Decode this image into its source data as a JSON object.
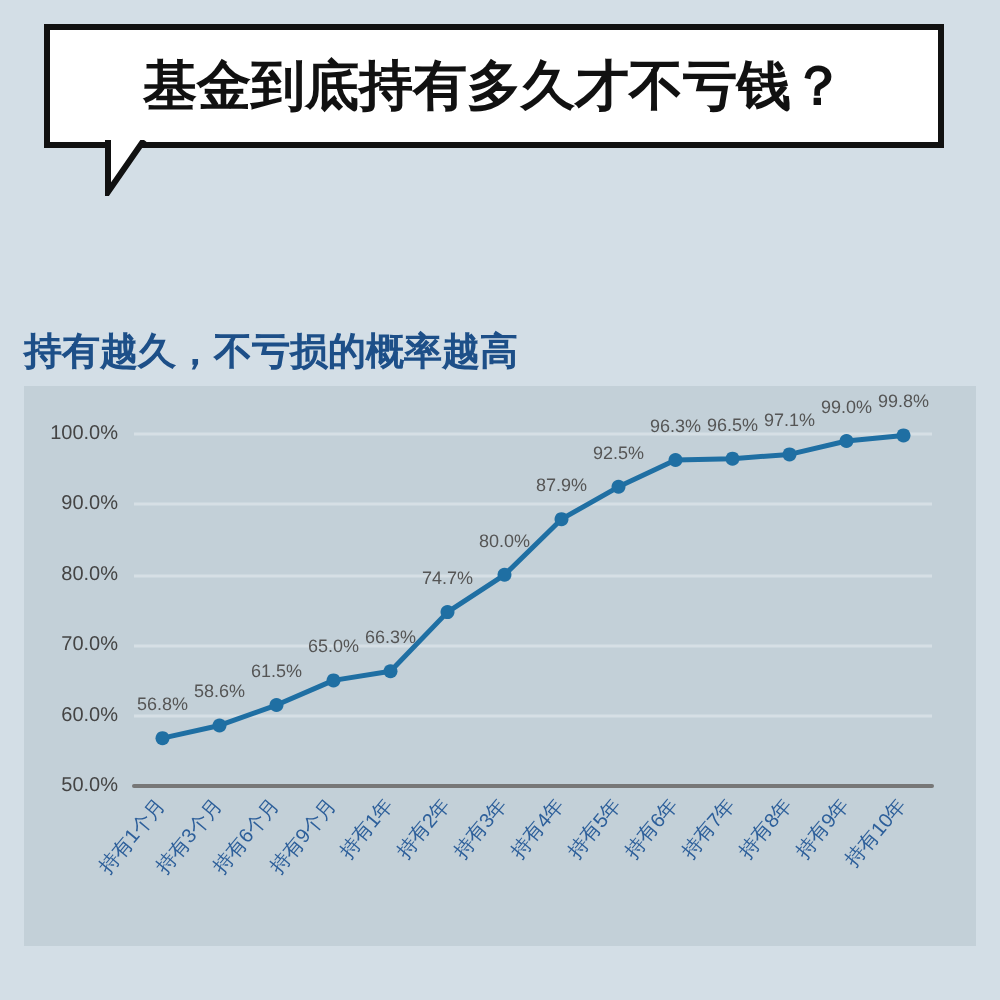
{
  "chart_data": {
    "type": "line",
    "title": "基金到底持有多久才不亏钱？",
    "subtitle": "持有越久，不亏损的概率越高",
    "categories": [
      "持有1个月",
      "持有3个月",
      "持有6个月",
      "持有9个月",
      "持有1年",
      "持有2年",
      "持有3年",
      "持有4年",
      "持有5年",
      "持有6年",
      "持有7年",
      "持有8年",
      "持有9年",
      "持有10年"
    ],
    "series": [
      {
        "color": "#1f6fa3",
        "values": [
          56.8,
          58.6,
          61.5,
          65.0,
          66.3,
          74.7,
          80.0,
          87.9,
          92.5,
          96.3,
          96.5,
          97.1,
          99.0,
          99.8
        ],
        "value_labels": [
          "56.8%",
          "58.6%",
          "61.5%",
          "65.0%",
          "66.3%",
          "74.7%",
          "80.0%",
          "87.9%",
          "92.5%",
          "96.3%",
          "96.5%",
          "97.1%",
          "99.0%",
          "99.8%"
        ]
      }
    ],
    "ylim": [
      50,
      100
    ],
    "yticks": [
      {
        "value": 50,
        "label": "50.0%"
      },
      {
        "value": 60,
        "label": "60.0%"
      },
      {
        "value": 70,
        "label": "70.0%"
      },
      {
        "value": 80,
        "label": "80.0%"
      },
      {
        "value": 90,
        "label": "90.0%"
      },
      {
        "value": 100,
        "label": "100.0%"
      }
    ],
    "grid": "y",
    "marker": "circle",
    "line_style": "solid"
  }
}
